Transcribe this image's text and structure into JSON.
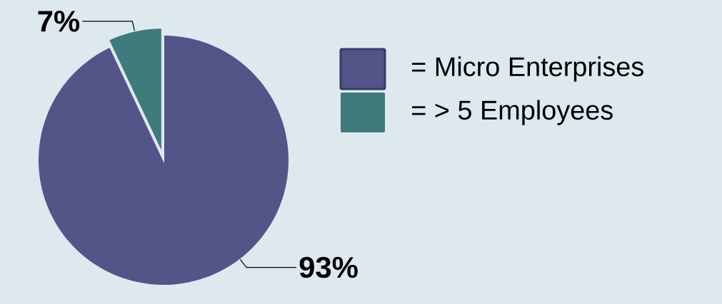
{
  "chart_data": {
    "type": "pie",
    "categories": [
      "= Micro Enterprises",
      "= > 5 Employees"
    ],
    "values": [
      93,
      7
    ],
    "colors": [
      "#535488",
      "#3f7b7c"
    ],
    "value_labels": [
      "93%",
      "7%"
    ],
    "legend": "right"
  }
}
